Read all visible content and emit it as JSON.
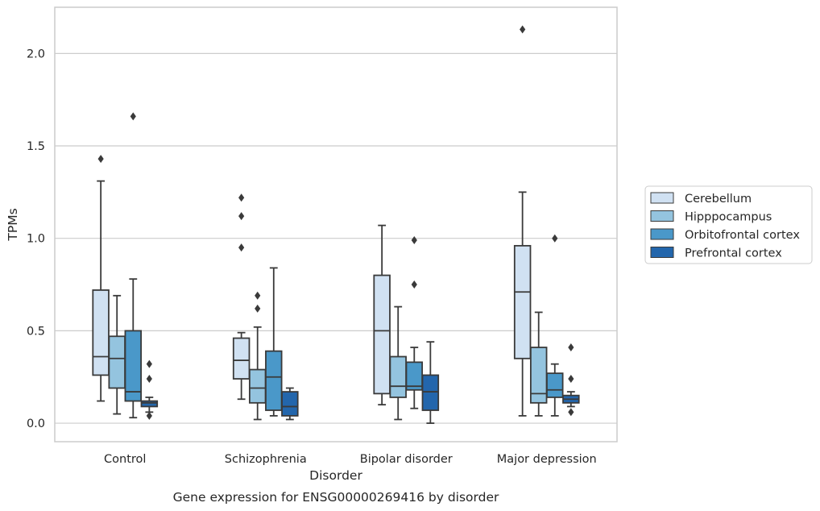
{
  "chart_data": {
    "type": "box",
    "caption": "Gene expression for ENSG00000269416 by disorder",
    "xlabel": "Disorder",
    "ylabel": "TPMs",
    "ylim": [
      -0.1,
      2.25
    ],
    "yticks": [
      0.0,
      0.5,
      1.0,
      1.5,
      2.0
    ],
    "ytick_labels": [
      "0.0",
      "0.5",
      "1.0",
      "1.5",
      "2.0"
    ],
    "grid": "horizontal",
    "legend_position": "right",
    "categories": [
      "Control",
      "Schizophrenia",
      "Bipolar disorder",
      "Major depression"
    ],
    "series": [
      {
        "name": "Cerebellum",
        "color": "#d0e1f2",
        "boxes": [
          {
            "whisker_low": 0.12,
            "q1": 0.26,
            "median": 0.36,
            "q3": 0.72,
            "whisker_high": 1.31,
            "outliers": [
              1.43
            ]
          },
          {
            "whisker_low": 0.13,
            "q1": 0.24,
            "median": 0.34,
            "q3": 0.46,
            "whisker_high": 0.49,
            "outliers": [
              0.95,
              1.12,
              1.22
            ]
          },
          {
            "whisker_low": 0.1,
            "q1": 0.16,
            "median": 0.5,
            "q3": 0.8,
            "whisker_high": 1.07,
            "outliers": []
          },
          {
            "whisker_low": 0.04,
            "q1": 0.35,
            "median": 0.71,
            "q3": 0.96,
            "whisker_high": 1.25,
            "outliers": [
              2.13
            ]
          }
        ]
      },
      {
        "name": "Hipppocampus",
        "color": "#94c4df",
        "boxes": [
          {
            "whisker_low": 0.05,
            "q1": 0.19,
            "median": 0.35,
            "q3": 0.47,
            "whisker_high": 0.69,
            "outliers": []
          },
          {
            "whisker_low": 0.02,
            "q1": 0.11,
            "median": 0.19,
            "q3": 0.29,
            "whisker_high": 0.52,
            "outliers": [
              0.62,
              0.69
            ]
          },
          {
            "whisker_low": 0.02,
            "q1": 0.14,
            "median": 0.2,
            "q3": 0.36,
            "whisker_high": 0.63,
            "outliers": []
          },
          {
            "whisker_low": 0.04,
            "q1": 0.11,
            "median": 0.16,
            "q3": 0.41,
            "whisker_high": 0.6,
            "outliers": []
          }
        ]
      },
      {
        "name": "Orbitofrontal cortex",
        "color": "#4a98c9",
        "boxes": [
          {
            "whisker_low": 0.03,
            "q1": 0.12,
            "median": 0.17,
            "q3": 0.5,
            "whisker_high": 0.78,
            "outliers": [
              1.66
            ]
          },
          {
            "whisker_low": 0.04,
            "q1": 0.07,
            "median": 0.25,
            "q3": 0.39,
            "whisker_high": 0.84,
            "outliers": []
          },
          {
            "whisker_low": 0.08,
            "q1": 0.18,
            "median": 0.2,
            "q3": 0.33,
            "whisker_high": 0.41,
            "outliers": [
              0.75,
              0.99
            ]
          },
          {
            "whisker_low": 0.04,
            "q1": 0.14,
            "median": 0.18,
            "q3": 0.27,
            "whisker_high": 0.32,
            "outliers": [
              1.0
            ]
          }
        ]
      },
      {
        "name": "Prefrontal cortex",
        "color": "#2366ac",
        "boxes": [
          {
            "whisker_low": 0.06,
            "q1": 0.09,
            "median": 0.11,
            "q3": 0.12,
            "whisker_high": 0.14,
            "outliers": [
              0.04,
              0.24,
              0.32
            ]
          },
          {
            "whisker_low": 0.02,
            "q1": 0.04,
            "median": 0.09,
            "q3": 0.17,
            "whisker_high": 0.19,
            "outliers": []
          },
          {
            "whisker_low": 0.0,
            "q1": 0.07,
            "median": 0.17,
            "q3": 0.26,
            "whisker_high": 0.44,
            "outliers": []
          },
          {
            "whisker_low": 0.09,
            "q1": 0.11,
            "median": 0.13,
            "q3": 0.15,
            "whisker_high": 0.17,
            "outliers": [
              0.06,
              0.24,
              0.41
            ]
          }
        ]
      }
    ]
  }
}
